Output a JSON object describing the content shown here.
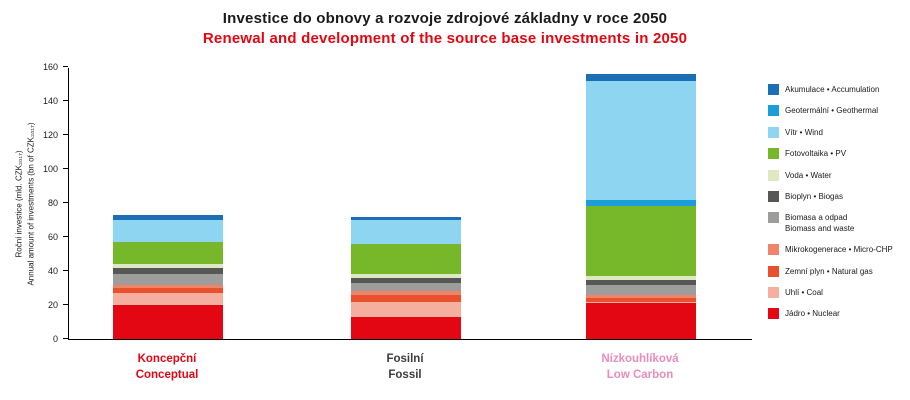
{
  "chart_data": {
    "type": "bar",
    "stacked": true,
    "title": "Investice do obnovy a rozvoje zdrojové základny v roce 2050",
    "subtitle": "Renewal and development of the source base investments in 2050",
    "ylabel_cz": "Roční investice (mld. CZK₂₀₁₇)",
    "ylabel_en": "Annual amount of investments (bn of CZK₂₀₁₇)",
    "ylim": [
      0,
      160
    ],
    "yticks": [
      0,
      20,
      40,
      60,
      80,
      100,
      120,
      140,
      160
    ],
    "grid": false,
    "legend_position": "right",
    "categories": [
      {
        "cz": "Koncepční",
        "en": "Conceptual",
        "color": "#e30613"
      },
      {
        "cz": "Fosilní",
        "en": "Fossil",
        "color": "#3c3c3b"
      },
      {
        "cz": "Nízkouhlíková",
        "en": "Low Carbon",
        "color": "#ea8cbe"
      }
    ],
    "series": [
      {
        "key": "nuclear",
        "name": "Jádro • Nuclear",
        "color": "#e30613",
        "values": [
          20,
          13,
          21
        ]
      },
      {
        "key": "coal",
        "name": "Uhlí • Coal",
        "color": "#f5af9e",
        "values": [
          7,
          9,
          1
        ]
      },
      {
        "key": "natural-gas",
        "name": "Zemní plyn • Natural gas",
        "color": "#e8502e",
        "values": [
          3,
          4,
          2
        ]
      },
      {
        "key": "micro-chp",
        "name": "Mikrokogenerace • Micro-CHP",
        "color": "#f0846a",
        "values": [
          2,
          2,
          2
        ]
      },
      {
        "key": "biomass-waste",
        "name": "Biomasa a odpad • Biomass and waste",
        "color": "#9d9d9c",
        "values": [
          6,
          5,
          6
        ]
      },
      {
        "key": "biogas",
        "name": "Bioplyn • Biogas",
        "color": "#575756",
        "values": [
          4,
          3,
          3
        ]
      },
      {
        "key": "water",
        "name": "Voda • Water",
        "color": "#dee8c2",
        "values": [
          2,
          2,
          2
        ]
      },
      {
        "key": "pv",
        "name": "Fotovoltaika • PV",
        "color": "#76b82a",
        "values": [
          13,
          18,
          41
        ]
      },
      {
        "key": "geothermal",
        "name": "Geotermální • Geothermal",
        "color": "#1b9dd9",
        "values": [
          0,
          0,
          4
        ]
      },
      {
        "key": "wind",
        "name": "Vítr • Wind",
        "color": "#8ed5f2",
        "values": [
          13,
          14,
          70
        ]
      },
      {
        "key": "accumulation",
        "name": "Akumulace • Accumulation",
        "color": "#1c6fb4",
        "values": [
          3,
          2,
          4
        ]
      }
    ]
  },
  "legend": {
    "items": [
      {
        "key": "accumulation",
        "color": "#1c6fb4",
        "lines": [
          "Akumulace • Accumulation"
        ]
      },
      {
        "key": "geothermal",
        "color": "#1b9dd9",
        "lines": [
          "Geotermální • Geothermal"
        ]
      },
      {
        "key": "wind",
        "color": "#8ed5f2",
        "lines": [
          "Vítr • Wind"
        ]
      },
      {
        "key": "pv",
        "color": "#76b82a",
        "lines": [
          "Fotovoltaika • PV"
        ]
      },
      {
        "key": "water",
        "color": "#dee8c2",
        "lines": [
          "Voda • Water"
        ]
      },
      {
        "key": "biogas",
        "color": "#575756",
        "lines": [
          "Bioplyn • Biogas"
        ]
      },
      {
        "key": "biomass-waste",
        "color": "#9d9d9c",
        "lines": [
          "Biomasa a odpad",
          "Biomass and waste"
        ]
      },
      {
        "key": "micro-chp",
        "color": "#f0846a",
        "lines": [
          "Mikrokogenerace • Micro-CHP"
        ]
      },
      {
        "key": "natural-gas",
        "color": "#e8502e",
        "lines": [
          "Zemní plyn • Natural gas"
        ]
      },
      {
        "key": "coal",
        "color": "#f5af9e",
        "lines": [
          "Uhlí • Coal"
        ]
      },
      {
        "key": "nuclear",
        "color": "#e30613",
        "lines": [
          "Jádro • Nuclear"
        ]
      }
    ]
  }
}
